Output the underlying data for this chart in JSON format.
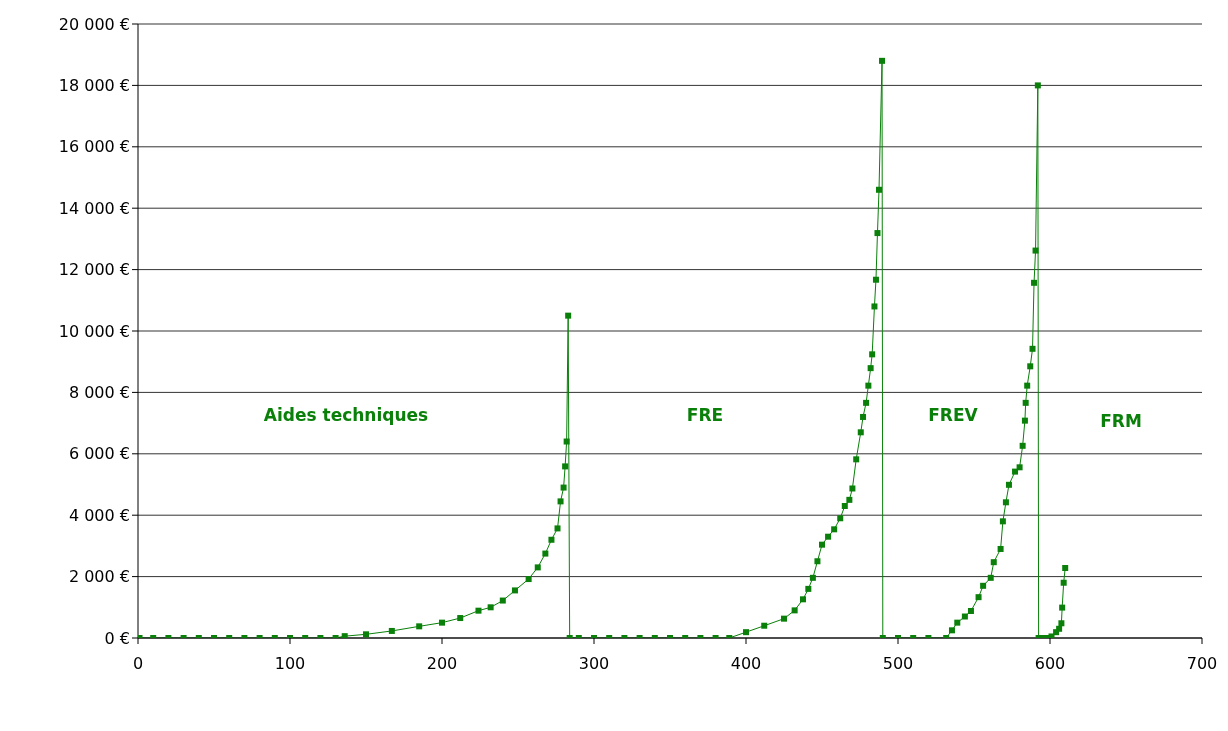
{
  "chart_data": {
    "type": "line",
    "x": [
      1,
      10,
      20,
      30,
      40,
      50,
      60,
      70,
      80,
      90,
      100,
      110,
      120,
      130,
      136,
      150,
      167,
      185,
      200,
      212,
      224,
      232,
      240,
      248,
      257,
      263,
      268,
      272,
      276,
      278,
      280,
      281,
      282,
      283,
      284,
      290,
      300,
      310,
      320,
      330,
      340,
      350,
      360,
      370,
      380,
      389,
      400,
      412,
      425,
      432,
      437.5,
      441,
      444,
      447,
      450,
      454,
      458,
      462,
      465,
      468,
      470,
      472.5,
      475.5,
      477,
      479,
      480.5,
      482,
      483,
      484.5,
      485.5,
      486.5,
      487.5,
      489.5,
      490,
      500,
      510,
      520,
      531.7,
      535.5,
      539,
      544,
      548,
      553,
      556,
      561,
      563,
      567.5,
      569,
      571,
      573,
      577,
      580,
      582,
      583.5,
      584,
      585,
      587,
      588.5,
      589.5,
      590.5,
      592,
      592.5,
      595,
      598,
      601,
      604,
      606,
      607.5,
      608,
      609,
      610
    ],
    "series": [
      {
        "color": "#0a800a",
        "values": [
          0,
          0,
          0,
          0,
          0,
          0,
          0,
          0,
          0,
          0,
          0,
          0,
          0,
          0,
          60,
          120,
          230,
          380,
          500,
          650,
          890,
          1000,
          1220,
          1550,
          1920,
          2300,
          2750,
          3200,
          3570,
          4450,
          4900,
          5590,
          6400,
          10500,
          0,
          0,
          0,
          0,
          0,
          0,
          0,
          0,
          0,
          0,
          0,
          0,
          190,
          400,
          630,
          900,
          1260,
          1600,
          1960,
          2500,
          3040,
          3300,
          3540,
          3900,
          4300,
          4500,
          4870,
          5820,
          6700,
          7200,
          7660,
          8220,
          8790,
          9240,
          10800,
          11670,
          13190,
          14600,
          18800,
          0,
          0,
          0,
          0,
          0,
          250,
          500,
          700,
          880,
          1330,
          1700,
          1960,
          2470,
          2900,
          3800,
          4420,
          4990,
          5420,
          5560,
          6260,
          7080,
          7660,
          8220,
          8850,
          9420,
          11570,
          12620,
          18000,
          0,
          0,
          0,
          50,
          190,
          300,
          480,
          990,
          1800,
          2280
        ]
      }
    ],
    "xlim": [
      0,
      700
    ],
    "xticks": [
      0,
      100,
      200,
      300,
      400,
      500,
      600,
      700
    ],
    "ylim": [
      0,
      20000
    ],
    "yticks": [
      {
        "value": 0,
        "label": "0 €"
      },
      {
        "value": 2000,
        "label": "2 000 €"
      },
      {
        "value": 4000,
        "label": "4 000 €"
      },
      {
        "value": 6000,
        "label": "6 000 €"
      },
      {
        "value": 8000,
        "label": "8 000 €"
      },
      {
        "value": 10000,
        "label": "10 000 €"
      },
      {
        "value": 12000,
        "label": "12 000 €"
      },
      {
        "value": 14000,
        "label": "14 000 €"
      },
      {
        "value": 16000,
        "label": "16 000 €"
      },
      {
        "value": 18000,
        "label": "18 000 €"
      },
      {
        "value": 20000,
        "label": "20 000 €"
      }
    ],
    "grid": "y",
    "marker": "square",
    "line_style": "solid",
    "annotations": [
      "Aides techniques",
      "FRE",
      "FREV",
      "FRM"
    ]
  }
}
